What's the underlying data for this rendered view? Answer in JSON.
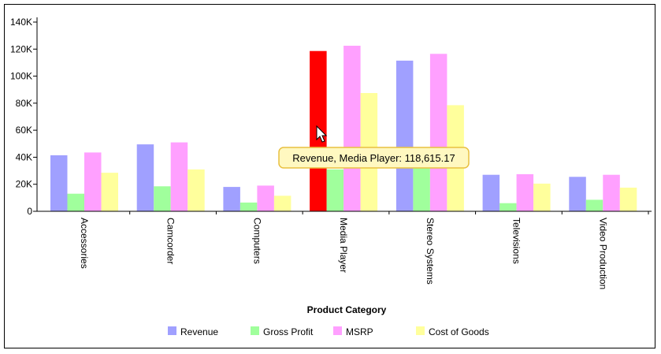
{
  "colors": {
    "Revenue": "#a0a0ff",
    "Gross Profit": "#a0ff9c",
    "MSRP": "#ffa0ff",
    "Cost of Goods": "#ffff9c",
    "highlight": "#ff0000",
    "tooltip_bg": "#fff8c0",
    "tooltip_border": "#e8c040"
  },
  "chart_data": {
    "type": "bar",
    "title": "",
    "xlabel": "Product Category",
    "ylabel": "",
    "ylim": [
      0,
      140000
    ],
    "yticks": [
      0,
      20000,
      40000,
      60000,
      80000,
      100000,
      120000,
      140000
    ],
    "ytick_labels": [
      "0",
      "20K",
      "40K",
      "60K",
      "80K",
      "100K",
      "120K",
      "140K"
    ],
    "categories": [
      "Accessories",
      "Camcorder",
      "Computers",
      "Media Player",
      "Stereo Systems",
      "Televisions",
      "Video Production"
    ],
    "series": [
      {
        "name": "Revenue",
        "values": [
          41500,
          49500,
          18000,
          118615.17,
          111500,
          27000,
          25500
        ]
      },
      {
        "name": "Gross Profit",
        "values": [
          13000,
          18500,
          6500,
          31000,
          33000,
          6000,
          8500
        ]
      },
      {
        "name": "MSRP",
        "values": [
          43500,
          51000,
          19000,
          122500,
          116500,
          27500,
          27000
        ]
      },
      {
        "name": "Cost of Goods",
        "values": [
          28500,
          31000,
          11500,
          87500,
          78500,
          20500,
          17500
        ]
      }
    ],
    "legend_position": "bottom",
    "grid": false,
    "highlight": {
      "series": "Revenue",
      "category": "Media Player"
    },
    "tooltip": "Revenue, Media Player: 118,615.17"
  }
}
